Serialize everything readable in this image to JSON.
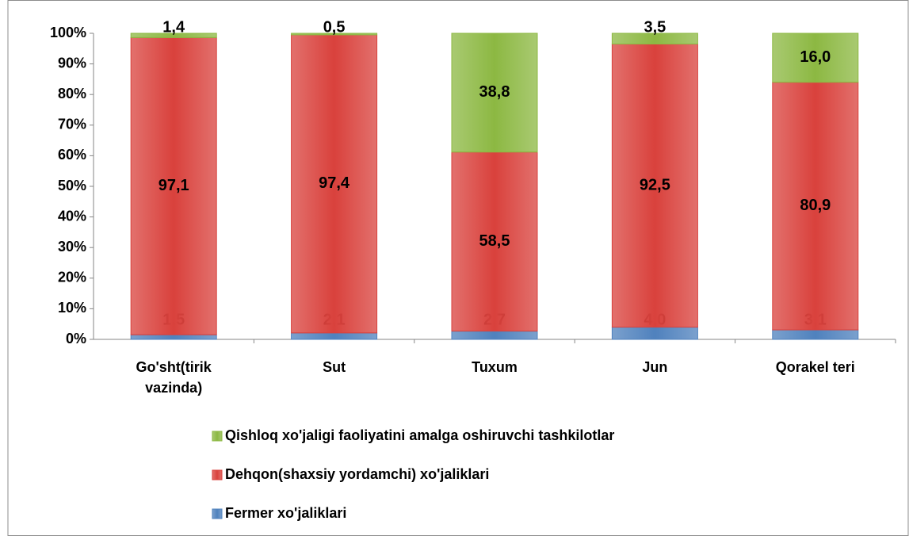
{
  "chart_data": {
    "type": "stacked_bar",
    "categories": [
      "Go'sht(tirik vazinda)",
      "Sut",
      "Tuxum",
      "Jun",
      "Qorakel teri"
    ],
    "series": [
      {
        "name": "Fermer xo'jaliklari",
        "color": "#4f81bd",
        "values": [
          1.5,
          2.1,
          2.7,
          4.0,
          3.1
        ],
        "value_labels": [
          "1,5",
          "2,1",
          "2,7",
          "4,0",
          "3,1"
        ]
      },
      {
        "name": "Dehqon(shaxsiy yordamchi) xo'jaliklari",
        "color": "#d9413c",
        "values": [
          97.1,
          97.4,
          58.5,
          92.5,
          80.9
        ],
        "value_labels": [
          "97,1",
          "97,4",
          "58,5",
          "92,5",
          "80,9"
        ]
      },
      {
        "name": "Qishloq xo'jaligi faoliyatini amalga oshiruvchi tashkilotlar",
        "color": "#8cb842",
        "values": [
          1.4,
          0.5,
          38.8,
          3.5,
          16.0
        ],
        "value_labels": [
          "1,4",
          "0,5",
          "38,8",
          "3,5",
          "16,0"
        ]
      }
    ],
    "ylim": [
      0,
      100
    ],
    "yticks": [
      {
        "value": 0,
        "label": "0%"
      },
      {
        "value": 10,
        "label": "10%"
      },
      {
        "value": 20,
        "label": "20%"
      },
      {
        "value": 30,
        "label": "30%"
      },
      {
        "value": 40,
        "label": "40%"
      },
      {
        "value": 50,
        "label": "50%"
      },
      {
        "value": 60,
        "label": "60%"
      },
      {
        "value": 70,
        "label": "70%"
      },
      {
        "value": 80,
        "label": "80%"
      },
      {
        "value": 90,
        "label": "90%"
      },
      {
        "value": 100,
        "label": "100%"
      }
    ],
    "grid": false
  }
}
